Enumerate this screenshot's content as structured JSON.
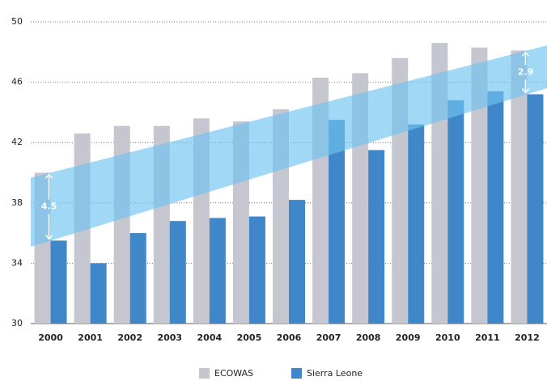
{
  "chart_data": {
    "type": "bar",
    "categories": [
      "2000",
      "2001",
      "2002",
      "2003",
      "2004",
      "2005",
      "2006",
      "2007",
      "2008",
      "2009",
      "2010",
      "2011",
      "2012"
    ],
    "series": [
      {
        "name": "ECOWAS",
        "color": "#c5c6d0",
        "values": [
          40.0,
          42.6,
          43.1,
          43.1,
          43.6,
          43.4,
          44.2,
          46.3,
          46.6,
          47.6,
          48.6,
          48.3,
          48.1
        ]
      },
      {
        "name": "Sierra Leone",
        "color": "#3f87c8",
        "values": [
          35.5,
          34.0,
          36.0,
          36.8,
          37.0,
          37.1,
          38.2,
          43.5,
          41.5,
          43.2,
          44.8,
          45.4,
          45.2
        ]
      }
    ],
    "ylim": [
      30,
      50
    ],
    "yticks": [
      30,
      34,
      38,
      42,
      46,
      50
    ],
    "grid": true,
    "annotations": [
      "4.5",
      "2.9"
    ]
  }
}
